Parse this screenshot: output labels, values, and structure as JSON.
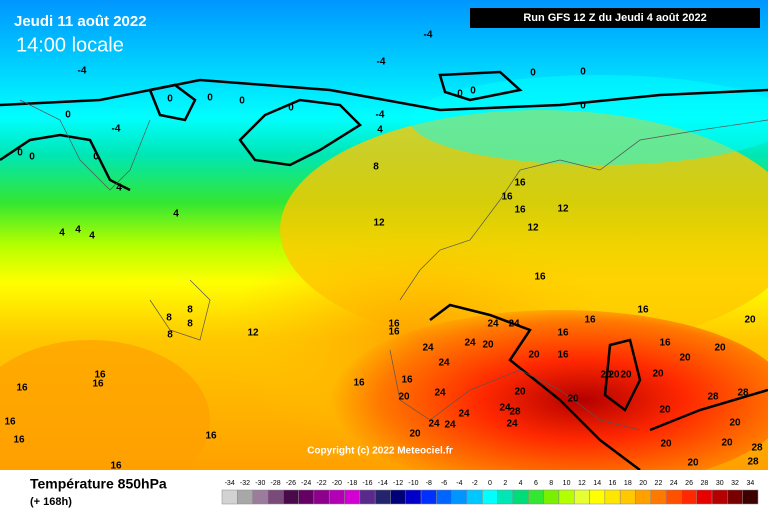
{
  "header": {
    "date": "Jeudi 11 août 2022",
    "time": "14:00 locale",
    "run": "Run GFS 12 Z du Jeudi 4 août 2022"
  },
  "copyright": "Copyright (c) 2022 Meteociel.fr",
  "footer": {
    "title": "Température 850hPa",
    "subtitle": "(+ 168h)"
  },
  "contour_labels": [
    -4,
    -4,
    -4,
    0,
    0,
    0,
    0,
    0,
    0,
    0,
    0,
    0,
    -4,
    4,
    -4,
    0,
    0,
    0,
    0,
    4,
    8,
    4,
    4,
    4,
    4,
    12,
    16,
    16,
    16,
    12,
    12,
    16,
    8,
    8,
    8,
    8,
    12,
    16,
    16,
    24,
    24,
    16,
    16,
    16,
    20,
    24,
    24,
    20,
    16,
    16,
    20,
    20,
    20,
    20,
    24,
    20,
    20,
    20,
    20,
    16,
    16,
    16,
    16,
    16,
    16,
    16,
    16,
    20,
    20,
    24,
    24,
    24,
    24,
    24,
    28,
    24,
    20,
    20,
    28,
    28,
    20,
    20,
    20,
    20,
    28,
    28,
    16
  ],
  "scale": [
    {
      "value": -34,
      "color": "#d2d2d2"
    },
    {
      "value": -32,
      "color": "#a8a8a8"
    },
    {
      "value": -30,
      "color": "#9c7c9c"
    },
    {
      "value": -28,
      "color": "#7a4a7a"
    },
    {
      "value": -26,
      "color": "#4a0a4a"
    },
    {
      "value": -24,
      "color": "#640064"
    },
    {
      "value": -22,
      "color": "#8c008c"
    },
    {
      "value": -20,
      "color": "#b400b4"
    },
    {
      "value": -18,
      "color": "#d200d2"
    },
    {
      "value": -16,
      "color": "#5a2a8a"
    },
    {
      "value": -14,
      "color": "#24246e"
    },
    {
      "value": -12,
      "color": "#000078"
    },
    {
      "value": -10,
      "color": "#0000c8"
    },
    {
      "value": -8,
      "color": "#0030ff"
    },
    {
      "value": -6,
      "color": "#0064ff"
    },
    {
      "value": -4,
      "color": "#0096ff"
    },
    {
      "value": -2,
      "color": "#00c8ff"
    },
    {
      "value": 0,
      "color": "#00ffff"
    },
    {
      "value": 2,
      "color": "#00e6b4"
    },
    {
      "value": 4,
      "color": "#00dc78"
    },
    {
      "value": 6,
      "color": "#32e632"
    },
    {
      "value": 8,
      "color": "#78f000"
    },
    {
      "value": 10,
      "color": "#b4ff00"
    },
    {
      "value": 12,
      "color": "#e6ff32"
    },
    {
      "value": 14,
      "color": "#ffff00"
    },
    {
      "value": 16,
      "color": "#ffe600"
    },
    {
      "value": 18,
      "color": "#ffc800"
    },
    {
      "value": 20,
      "color": "#ffa000"
    },
    {
      "value": 22,
      "color": "#ff7800"
    },
    {
      "value": 24,
      "color": "#ff5000"
    },
    {
      "value": 26,
      "color": "#ff2800"
    },
    {
      "value": 28,
      "color": "#e60000"
    },
    {
      "value": 30,
      "color": "#b40000"
    },
    {
      "value": 32,
      "color": "#780000"
    },
    {
      "value": 34,
      "color": "#3c0000"
    }
  ]
}
